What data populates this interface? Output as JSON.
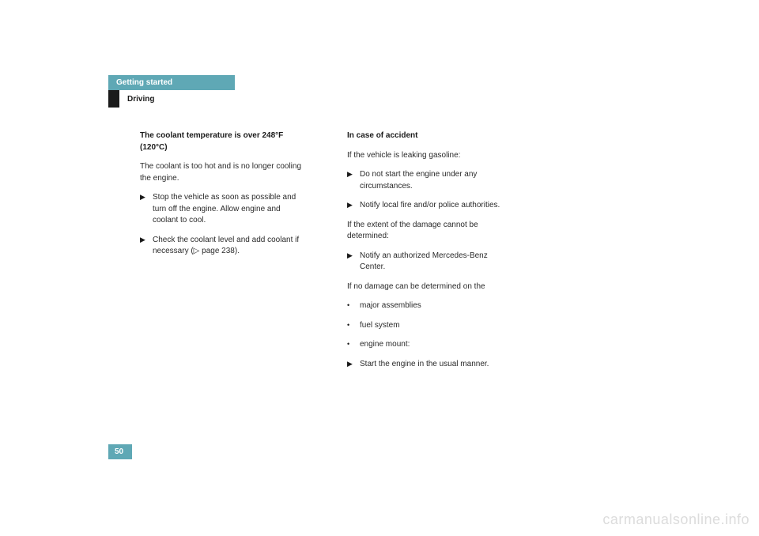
{
  "header": {
    "tab": "Getting started",
    "section": "Driving",
    "tab_bg": "#5fa8b5",
    "tab_text_color": "#ffffff",
    "black_block_color": "#1a1a1a"
  },
  "col1": {
    "heading": "The coolant temperature is over 248°F (120°C)",
    "intro": "The coolant is too hot and is no longer cooling the engine.",
    "bullets": [
      "Stop the vehicle as soon as possible and turn off the engine. Allow engine and coolant to cool.",
      "Check the coolant level and add coolant if necessary (▷ page 238)."
    ]
  },
  "col2": {
    "heading": "In case of accident",
    "intro1": "If the vehicle is leaking gasoline:",
    "bullets1": [
      "Do not start the engine under any circumstances.",
      "Notify local fire and/or police authorities."
    ],
    "intro2": "If the extent of the damage cannot be determined:",
    "bullets2": [
      "Notify an authorized Mercedes-Benz Center."
    ],
    "intro3": "If no damage can be determined on the",
    "dots": [
      "major assemblies",
      "fuel system",
      "engine mount:"
    ],
    "bullets3": [
      "Start the engine in the usual manner."
    ]
  },
  "markers": {
    "triangle": "▶",
    "dot": "•"
  },
  "page_number": "50",
  "watermark": "carmanualsonline.info",
  "colors": {
    "text": "#2a2a2a",
    "heading": "#1a1a1a",
    "watermark": "#dcdcdc",
    "background": "#ffffff"
  },
  "fonts": {
    "body_size_pt": 10,
    "heading_size_pt": 10,
    "watermark_size_pt": 18
  }
}
